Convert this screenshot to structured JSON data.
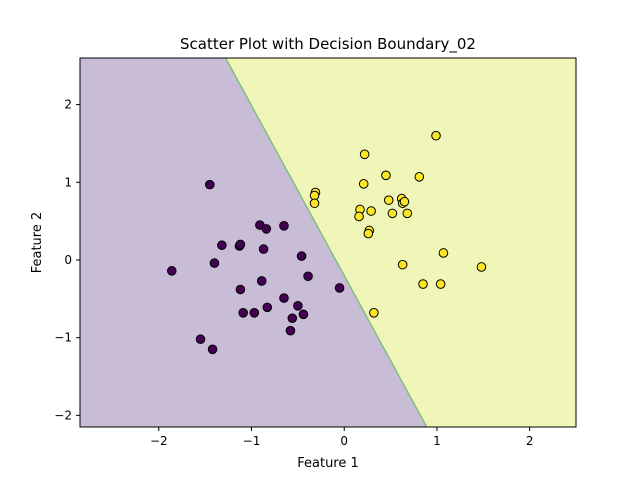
{
  "chart_data": {
    "type": "scatter",
    "title": "Scatter Plot with Decision Boundary_02",
    "xlabel": "Feature 1",
    "ylabel": "Feature 2",
    "xlim": [
      -2.85,
      2.5
    ],
    "ylim": [
      -2.15,
      2.6
    ],
    "xticks": [
      -2,
      -1,
      0,
      1,
      2
    ],
    "xtick_labels": [
      "−2",
      "−1",
      "0",
      "1",
      "2"
    ],
    "yticks": [
      -2,
      -1,
      0,
      1,
      2
    ],
    "ytick_labels": [
      "−2",
      "−1",
      "0",
      "1",
      "2"
    ],
    "grid": false,
    "decision_boundary": {
      "type": "linear",
      "points": [
        [
          -1.28,
          2.6
        ],
        [
          0.89,
          -2.15
        ]
      ],
      "region_colors": {
        "class_0": "#c8bcd7",
        "class_1": "#eff6b8"
      },
      "boundary_color": "#7fbf7f"
    },
    "series": [
      {
        "class": 0,
        "color": "#440154",
        "points": [
          [
            -1.45,
            0.97
          ],
          [
            -1.32,
            0.19
          ],
          [
            -1.4,
            -0.04
          ],
          [
            -1.86,
            -0.14
          ],
          [
            -1.13,
            0.18
          ],
          [
            -1.12,
            0.2
          ],
          [
            -0.91,
            0.45
          ],
          [
            -0.84,
            0.4
          ],
          [
            -0.87,
            0.14
          ],
          [
            -0.65,
            0.44
          ],
          [
            -0.46,
            0.05
          ],
          [
            -0.39,
            -0.21
          ],
          [
            -0.89,
            -0.27
          ],
          [
            -1.12,
            -0.38
          ],
          [
            -1.09,
            -0.68
          ],
          [
            -0.97,
            -0.68
          ],
          [
            -0.83,
            -0.61
          ],
          [
            -0.65,
            -0.49
          ],
          [
            -0.5,
            -0.59
          ],
          [
            -0.56,
            -0.75
          ],
          [
            -0.44,
            -0.7
          ],
          [
            -0.58,
            -0.91
          ],
          [
            -1.55,
            -1.02
          ],
          [
            -1.42,
            -1.15
          ],
          [
            -0.05,
            -0.36
          ]
        ]
      },
      {
        "class": 1,
        "color": "#fde725",
        "points": [
          [
            -0.31,
            0.87
          ],
          [
            -0.32,
            0.83
          ],
          [
            -0.32,
            0.73
          ],
          [
            0.22,
            1.36
          ],
          [
            0.21,
            0.98
          ],
          [
            0.17,
            0.65
          ],
          [
            0.16,
            0.56
          ],
          [
            0.29,
            0.63
          ],
          [
            0.27,
            0.38
          ],
          [
            0.26,
            0.34
          ],
          [
            0.45,
            1.09
          ],
          [
            0.48,
            0.77
          ],
          [
            0.52,
            0.6
          ],
          [
            0.62,
            0.79
          ],
          [
            0.63,
            0.73
          ],
          [
            0.65,
            0.75
          ],
          [
            0.68,
            0.6
          ],
          [
            0.81,
            1.07
          ],
          [
            0.99,
            1.6
          ],
          [
            0.63,
            -0.06
          ],
          [
            1.07,
            0.09
          ],
          [
            1.48,
            -0.09
          ],
          [
            0.85,
            -0.31
          ],
          [
            1.04,
            -0.31
          ],
          [
            0.32,
            -0.68
          ]
        ]
      }
    ]
  }
}
